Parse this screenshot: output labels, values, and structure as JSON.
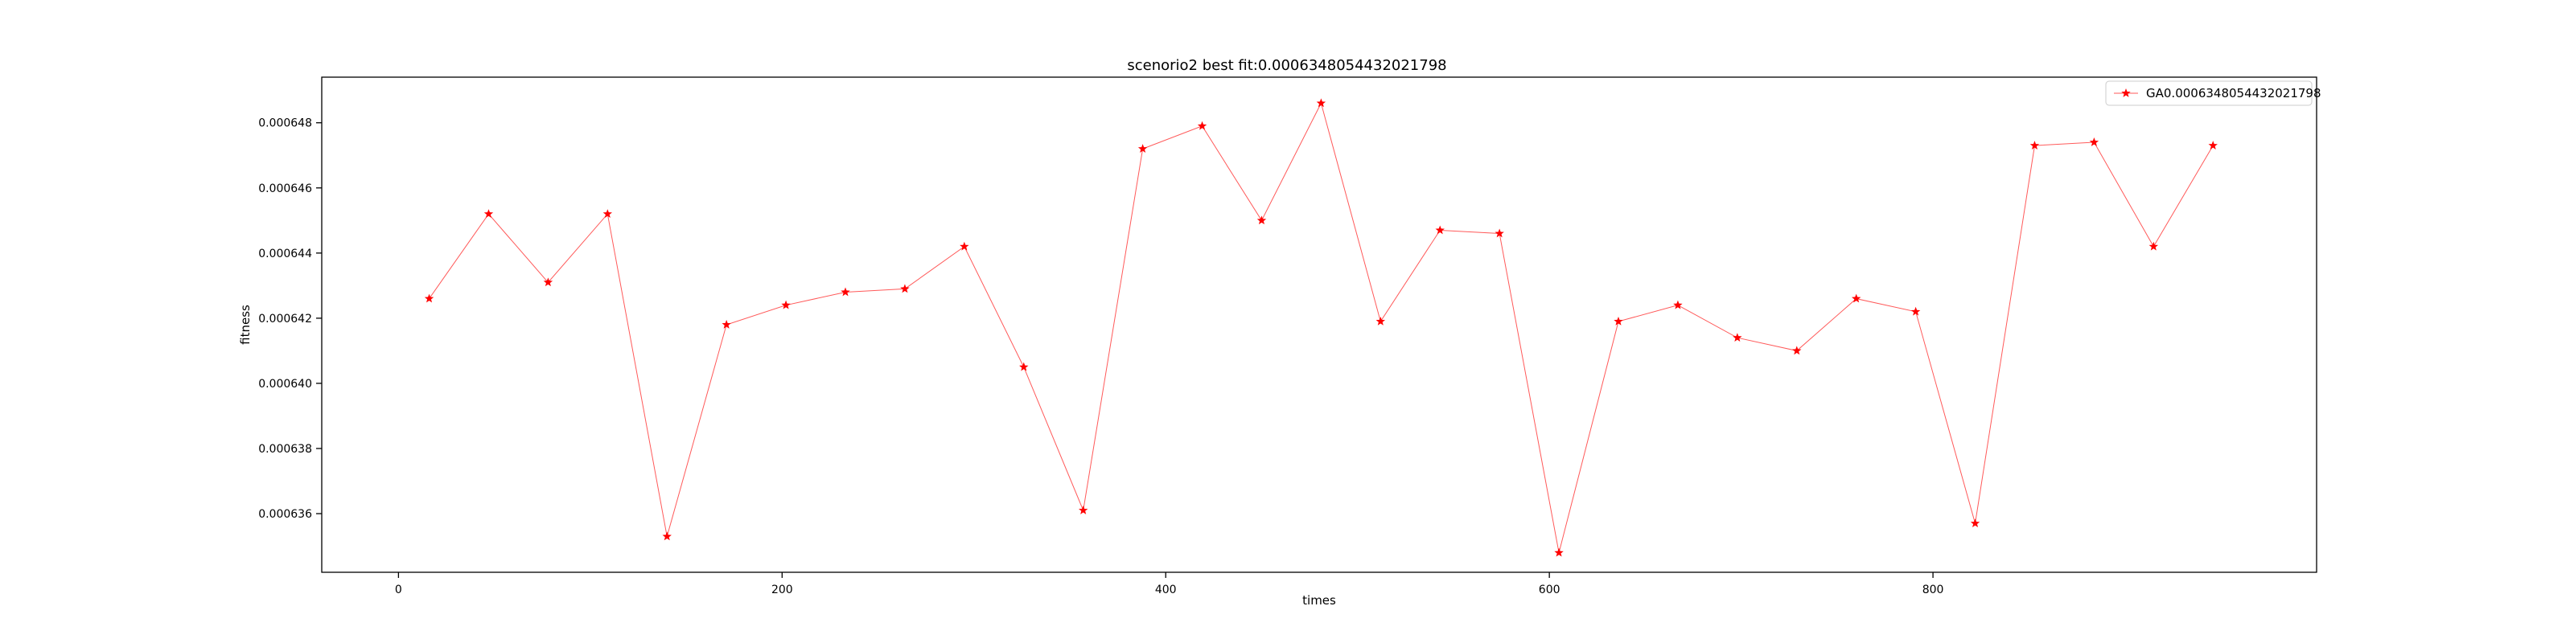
{
  "chart_data": {
    "type": "line",
    "title": "scenorio2 best fit:0.0006348054432021798",
    "xlabel": "times",
    "ylabel": "fitness",
    "xlim": [
      -40,
      1000
    ],
    "ylim": [
      0.0006342,
      0.0006494
    ],
    "xticks": [
      0,
      200,
      400,
      600,
      800
    ],
    "yticks": [
      0.000636,
      0.000638,
      0.00064,
      0.000642,
      0.000644,
      0.000646,
      0.000648
    ],
    "xtick_labels": [
      "0",
      "200",
      "400",
      "600",
      "800"
    ],
    "ytick_labels": [
      "0.000636",
      "0.000638",
      "0.000640",
      "0.000642",
      "0.000644",
      "0.000646",
      "0.000648"
    ],
    "grid": false,
    "legend_position": "top-right",
    "series": [
      {
        "name": "GA0.0006348054432021798",
        "color": "#ff0000",
        "marker": "star",
        "x": [
          16,
          47,
          78,
          109,
          140,
          171,
          202,
          233,
          264,
          295,
          326,
          357,
          388,
          419,
          450,
          481,
          512,
          543,
          574,
          605,
          636,
          667,
          698,
          729,
          760,
          791,
          822,
          853,
          884,
          915,
          946
        ],
        "values": [
          0.0006426,
          0.0006452,
          0.0006431,
          0.0006452,
          0.0006353,
          0.0006418,
          0.0006424,
          0.0006428,
          0.0006429,
          0.0006442,
          0.0006405,
          0.0006361,
          0.0006472,
          0.0006479,
          0.000645,
          0.0006486,
          0.0006419,
          0.0006447,
          0.0006446,
          0.0006348,
          0.0006419,
          0.0006424,
          0.0006414,
          0.000641,
          0.0006426,
          0.0006422,
          0.0006357,
          0.0006473,
          0.0006474,
          0.0006442,
          0.0006473
        ]
      }
    ]
  }
}
